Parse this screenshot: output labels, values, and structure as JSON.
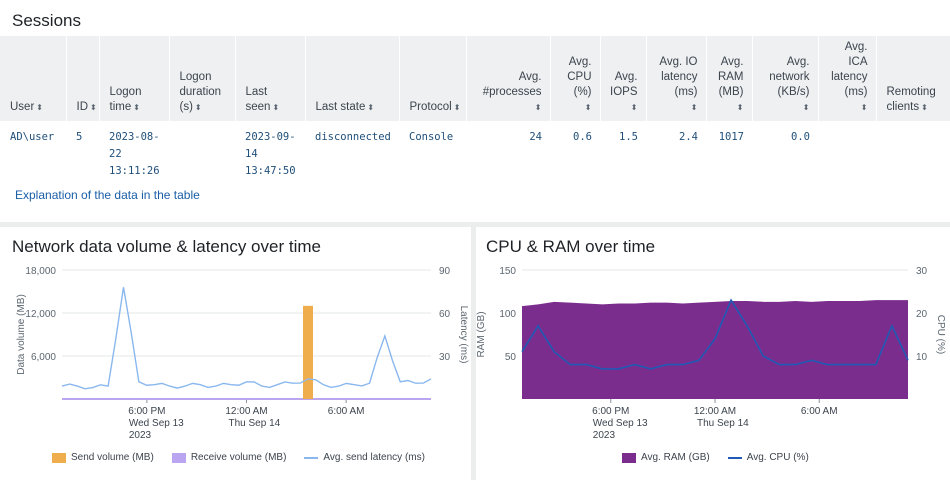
{
  "sessions": {
    "title": "Sessions",
    "columns": [
      {
        "label": "User",
        "numeric": false
      },
      {
        "label": "ID",
        "numeric": false
      },
      {
        "label": "Logon time",
        "numeric": false
      },
      {
        "label": "Logon duration (s)",
        "numeric": false
      },
      {
        "label": "Last seen",
        "numeric": false
      },
      {
        "label": "Last state",
        "numeric": false
      },
      {
        "label": "Protocol",
        "numeric": false
      },
      {
        "label": "Avg. #processes",
        "numeric": true
      },
      {
        "label": "Avg. CPU (%)",
        "numeric": true
      },
      {
        "label": "Avg. IOPS",
        "numeric": true
      },
      {
        "label": "Avg. IO latency (ms)",
        "numeric": true
      },
      {
        "label": "Avg. RAM (MB)",
        "numeric": true
      },
      {
        "label": "Avg. network (KB/s)",
        "numeric": true
      },
      {
        "label": "Avg. ICA latency (ms)",
        "numeric": true
      },
      {
        "label": "Remoting clients",
        "numeric": false
      }
    ],
    "rows": [
      {
        "user": "AD\\user",
        "id": "5",
        "logon_time": "2023-08-22 13:11:26",
        "logon_duration": "",
        "last_seen": "2023-09-14 13:47:50",
        "last_state": "disconnected",
        "protocol": "Console",
        "avg_processes": "24",
        "avg_cpu": "0.6",
        "avg_iops": "1.5",
        "avg_io_latency": "2.4",
        "avg_ram": "1017",
        "avg_network": "0.0",
        "avg_ica_latency": "",
        "remoting_clients": ""
      }
    ],
    "explain_link": "Explanation of the data in the table"
  },
  "network_chart": {
    "title": "Network data volume & latency over time",
    "legend": [
      {
        "label": "Send volume (MB)",
        "color": "#f0ad4e"
      },
      {
        "label": "Receive volume (MB)",
        "color": "#b9a5f0"
      },
      {
        "label": "Avg. send latency (ms)",
        "color": "#8ab8ee"
      }
    ]
  },
  "cpu_chart": {
    "title": "CPU & RAM over time",
    "legend": [
      {
        "label": "Avg. RAM (GB)",
        "color": "#7b2d8e"
      },
      {
        "label": "Avg. CPU (%)",
        "color": "#1f5ab4"
      }
    ]
  },
  "chart_data": [
    {
      "type": "area",
      "title": "Network data volume & latency over time",
      "xlabel": "",
      "ylabel": "Data volume (MB)",
      "ylabel_right": "Latency (ms)",
      "ylim": [
        0,
        18000
      ],
      "ylim_right": [
        0,
        90
      ],
      "yticks": [
        "6,000",
        "12,000",
        "18,000"
      ],
      "yticks_right": [
        "30",
        "60",
        "90"
      ],
      "xticks": [
        "6:00 PM\nWed Sep 13\n2023",
        "12:00 AM\nThu Sep 14",
        "6:00 AM"
      ],
      "x": [
        0,
        1,
        2,
        3,
        4,
        5,
        6,
        7,
        8,
        9,
        10,
        11,
        12,
        13,
        14,
        15,
        16,
        17,
        18,
        19,
        20,
        21,
        22,
        23,
        24
      ],
      "series": [
        {
          "name": "Send volume (MB)",
          "color": "#f0ad4e",
          "values": [
            0,
            0,
            0,
            0,
            0,
            0,
            0,
            0,
            0,
            0,
            0,
            0,
            0,
            0,
            0,
            0,
            13000,
            0,
            0,
            0,
            0,
            0,
            0,
            0,
            0
          ]
        },
        {
          "name": "Receive volume (MB)",
          "color": "#b9a5f0",
          "values": [
            0,
            0,
            0,
            0,
            0,
            0,
            0,
            0,
            0,
            0,
            0,
            0,
            0,
            0,
            0,
            0,
            0,
            0,
            0,
            0,
            0,
            0,
            0,
            0,
            0
          ]
        },
        {
          "name": "Avg. send latency (ms)",
          "color": "#8ab8ee",
          "axis": "right",
          "values": [
            9,
            9,
            8,
            9,
            78,
            12,
            10,
            9,
            9,
            10,
            9,
            10,
            12,
            9,
            10,
            11,
            14,
            10,
            9,
            10,
            11,
            44,
            12,
            11,
            14
          ]
        }
      ]
    },
    {
      "type": "area",
      "title": "CPU & RAM over time",
      "xlabel": "",
      "ylabel": "RAM (GB)",
      "ylabel_right": "CPU (%)",
      "ylim": [
        0,
        150
      ],
      "ylim_right": [
        0,
        30
      ],
      "yticks": [
        "50",
        "100",
        "150"
      ],
      "yticks_right": [
        "10",
        "20",
        "30"
      ],
      "xticks": [
        "6:00 PM\nWed Sep 13\n2023",
        "12:00 AM\nThu Sep 14",
        "6:00 AM"
      ],
      "x": [
        0,
        1,
        2,
        3,
        4,
        5,
        6,
        7,
        8,
        9,
        10,
        11,
        12,
        13,
        14,
        15,
        16,
        17,
        18,
        19,
        20,
        21,
        22,
        23,
        24
      ],
      "series": [
        {
          "name": "Avg. RAM (GB)",
          "color": "#7b2d8e",
          "values": [
            108,
            110,
            113,
            112,
            111,
            110,
            111,
            111,
            112,
            112,
            111,
            112,
            113,
            114,
            114,
            113,
            113,
            114,
            113,
            114,
            114,
            114,
            115,
            115,
            115
          ]
        },
        {
          "name": "Avg. CPU (%)",
          "color": "#1f5ab4",
          "axis": "right",
          "values": [
            11,
            17,
            11,
            8,
            8,
            7,
            7,
            8,
            7,
            8,
            8,
            9,
            14,
            23,
            17,
            10,
            8,
            8,
            9,
            8,
            8,
            8,
            8,
            17,
            9
          ]
        }
      ]
    }
  ]
}
